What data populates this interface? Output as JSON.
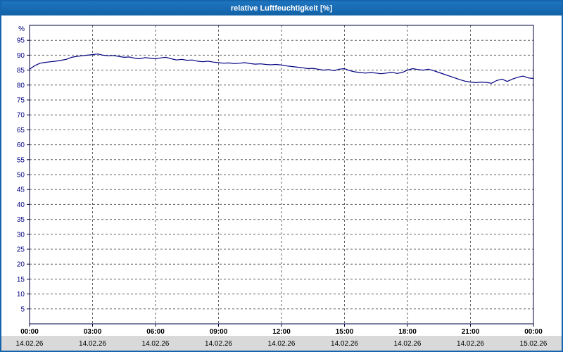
{
  "window": {
    "title": "relative Luftfeuchtigkeit [%]"
  },
  "colors": {
    "title_bar": "#1565ad",
    "window_border": "#1565ad",
    "plot_background": "#ffffff",
    "grid": "#606060",
    "plot_frame": "#000040",
    "y_label_color": "#000080",
    "x_time_color": "#000000",
    "x_date_color": "#000000",
    "line_color": "#000080",
    "footer_band": "#d9d9d9"
  },
  "chart_data": {
    "type": "line",
    "title": "relative Luftfeuchtigkeit [%]",
    "ylabel": "%",
    "xlabel": "",
    "ylim": [
      0,
      100
    ],
    "xlim_hours": [
      0,
      24
    ],
    "grid": "dashed",
    "legend_position": "none",
    "y_ticks": [
      5,
      10,
      15,
      20,
      25,
      30,
      35,
      40,
      45,
      50,
      55,
      60,
      65,
      70,
      75,
      80,
      85,
      90,
      95
    ],
    "x_tick_hours": [
      0,
      3,
      6,
      9,
      12,
      15,
      18,
      21,
      24
    ],
    "x_tick_labels": [
      "00:00",
      "03:00",
      "06:00",
      "09:00",
      "12:00",
      "15:00",
      "18:00",
      "21:00",
      "00:00"
    ],
    "x_tick_dates": [
      "14.02.26",
      "14.02.26",
      "14.02.26",
      "14.02.26",
      "14.02.26",
      "14.02.26",
      "14.02.26",
      "14.02.26",
      "15.02.26"
    ],
    "series": [
      {
        "name": "relative Luftfeuchtigkeit [%]",
        "color": "#000080",
        "x_hours_start": 0,
        "x_hours_step": 0.25,
        "values": [
          85.3,
          86.5,
          87.3,
          87.6,
          87.8,
          88.0,
          88.3,
          88.6,
          89.3,
          89.6,
          89.8,
          90.0,
          90.2,
          90.4,
          90.0,
          89.8,
          89.9,
          89.6,
          89.3,
          89.4,
          89.0,
          88.8,
          89.2,
          89.0,
          88.8,
          89.1,
          89.3,
          88.8,
          88.4,
          88.6,
          88.3,
          88.4,
          88.0,
          87.8,
          88.0,
          87.7,
          87.5,
          87.3,
          87.4,
          87.2,
          87.3,
          87.5,
          87.2,
          87.0,
          87.1,
          86.9,
          86.8,
          86.9,
          86.7,
          86.4,
          86.2,
          86.0,
          85.8,
          85.5,
          85.6,
          85.3,
          85.0,
          85.2,
          84.8,
          85.3,
          85.5,
          84.8,
          84.4,
          84.2,
          84.0,
          84.2,
          84.0,
          83.8,
          84.0,
          84.3,
          83.9,
          84.2,
          85.0,
          85.5,
          85.2,
          85.0,
          85.3,
          84.8,
          84.2,
          83.6,
          83.0,
          82.4,
          81.8,
          81.3,
          81.0,
          80.8,
          81.0,
          80.9,
          80.6,
          81.5,
          82.0,
          81.2,
          82.0,
          82.6,
          83.0,
          82.4,
          82.2
        ]
      }
    ]
  }
}
